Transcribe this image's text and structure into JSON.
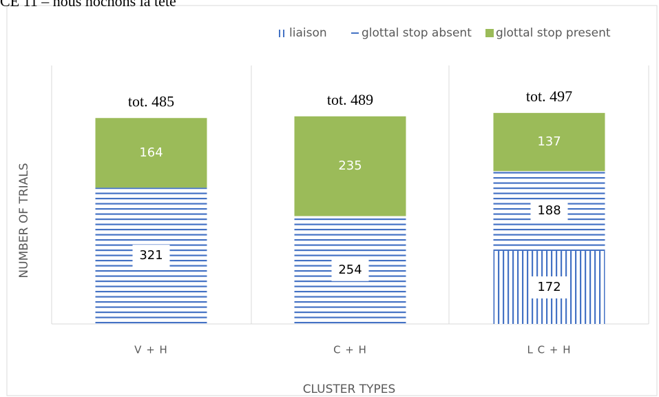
{
  "chart_data": {
    "type": "stacked_bar",
    "title": "CE 11 – nous hochons la tête",
    "x_label": "CLUSTER TYPES",
    "y_label": "NUMBER OF TRIALS",
    "categories": [
      "V + H",
      "C + H",
      "L C + H"
    ],
    "series": [
      {
        "name": "liaison",
        "color": "#4472c4",
        "pattern": "vertical",
        "values": [
          0,
          0,
          172
        ]
      },
      {
        "name": "glottal stop absent",
        "color": "#4472c4",
        "pattern": "horizontal",
        "values": [
          321,
          254,
          188
        ]
      },
      {
        "name": "glottal stop present",
        "color": "#9bbb59",
        "pattern": "solid",
        "values": [
          164,
          235,
          137
        ]
      }
    ],
    "total_labels": [
      "tot. 485",
      "tot. 489",
      "tot. 497"
    ],
    "ylim": [
      0,
      500
    ],
    "legend": "top"
  }
}
